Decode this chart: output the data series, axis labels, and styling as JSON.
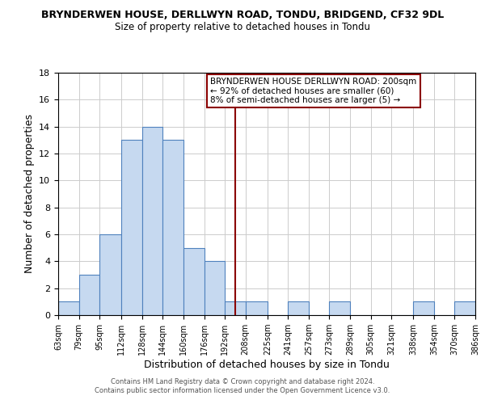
{
  "title": "BRYNDERWEN HOUSE, DERLLWYN ROAD, TONDU, BRIDGEND, CF32 9DL",
  "subtitle": "Size of property relative to detached houses in Tondu",
  "xlabel": "Distribution of detached houses by size in Tondu",
  "ylabel": "Number of detached properties",
  "bar_color": "#c6d9f0",
  "bar_edge_color": "#4f81bd",
  "grid_color": "#cccccc",
  "background_color": "#ffffff",
  "vline_color": "#8b0000",
  "vline_x": 200,
  "bin_edges": [
    63,
    79,
    95,
    112,
    128,
    144,
    160,
    176,
    192,
    208,
    225,
    241,
    257,
    273,
    289,
    305,
    321,
    338,
    354,
    370,
    386
  ],
  "counts": [
    1,
    3,
    6,
    13,
    14,
    13,
    5,
    4,
    1,
    1,
    0,
    1,
    0,
    1,
    0,
    0,
    0,
    1,
    0,
    1
  ],
  "ylim": [
    0,
    18
  ],
  "yticks": [
    0,
    2,
    4,
    6,
    8,
    10,
    12,
    14,
    16,
    18
  ],
  "tick_labels": [
    "63sqm",
    "79sqm",
    "95sqm",
    "112sqm",
    "128sqm",
    "144sqm",
    "160sqm",
    "176sqm",
    "192sqm",
    "208sqm",
    "225sqm",
    "241sqm",
    "257sqm",
    "273sqm",
    "289sqm",
    "305sqm",
    "321sqm",
    "338sqm",
    "354sqm",
    "370sqm",
    "386sqm"
  ],
  "legend_title": "BRYNDERWEN HOUSE DERLLWYN ROAD: 200sqm",
  "legend_line1": "← 92% of detached houses are smaller (60)",
  "legend_line2": "8% of semi-detached houses are larger (5) →",
  "legend_box_color": "#ffffff",
  "legend_box_edge_color": "#8b0000",
  "footer1": "Contains HM Land Registry data © Crown copyright and database right 2024.",
  "footer2": "Contains public sector information licensed under the Open Government Licence v3.0.",
  "footer_color": "#555555"
}
